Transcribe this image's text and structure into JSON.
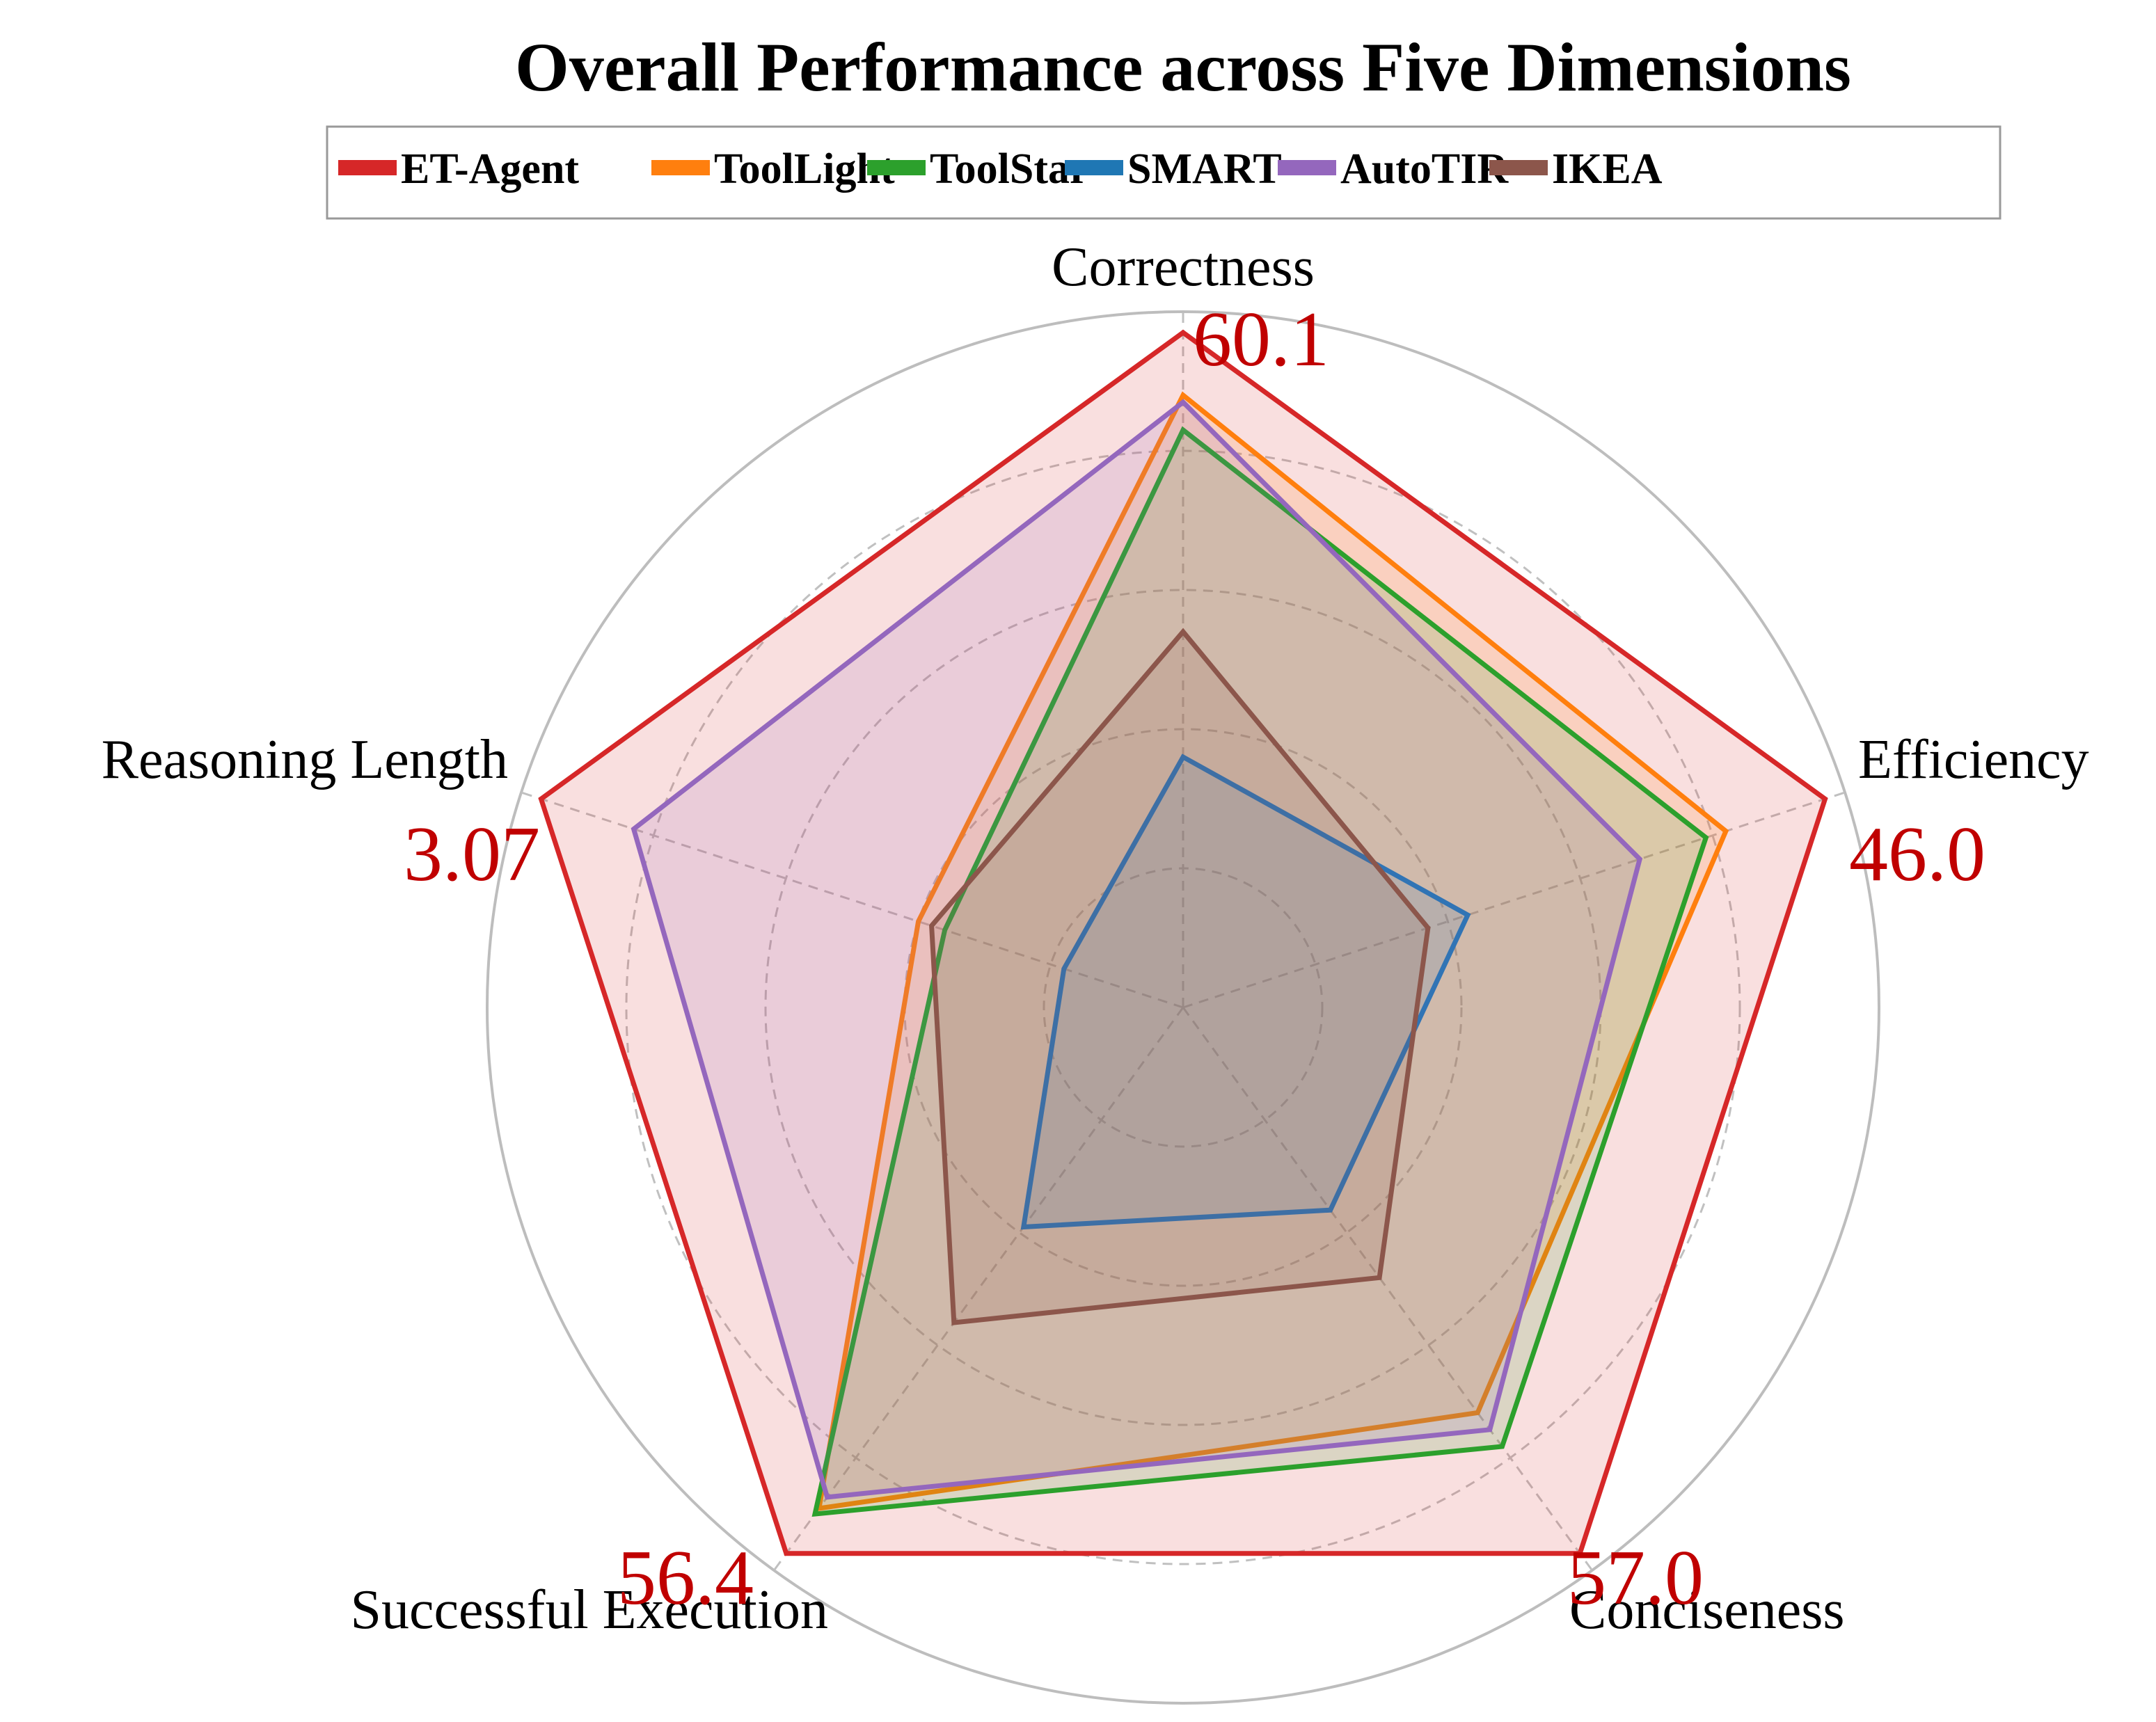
{
  "chart_data": {
    "type": "radar",
    "title": "Overall Performance across Five Dimensions",
    "axes": [
      "Correctness",
      "Efficiency",
      "Conciseness",
      "Successful Execution",
      "Reasoning Length"
    ],
    "axis_highlight_values": [
      "60.1",
      "46.0",
      "57.0",
      "56.4",
      "3.07"
    ],
    "range": [
      0,
      1
    ],
    "grid": true,
    "grid_levels": [
      0.2,
      0.4,
      0.6,
      0.8,
      1.0
    ],
    "legend_position": "top",
    "series": [
      {
        "name": "ET-Agent",
        "color": "#d62728",
        "values": [
          0.97,
          0.97,
          0.97,
          0.97,
          0.97
        ]
      },
      {
        "name": "ToolLight",
        "color": "#ff7f0e",
        "values": [
          0.88,
          0.82,
          0.72,
          0.89,
          0.4
        ]
      },
      {
        "name": "ToolStar",
        "color": "#2ca02c",
        "values": [
          0.83,
          0.79,
          0.78,
          0.9,
          0.36
        ]
      },
      {
        "name": "SMART",
        "color": "#1f77b4",
        "values": [
          0.36,
          0.43,
          0.36,
          0.39,
          0.18
        ]
      },
      {
        "name": "AutoTIR",
        "color": "#9467bd",
        "values": [
          0.87,
          0.69,
          0.75,
          0.87,
          0.83
        ]
      },
      {
        "name": "IKEA",
        "color": "#8c564b",
        "values": [
          0.54,
          0.37,
          0.48,
          0.56,
          0.38
        ]
      }
    ]
  }
}
